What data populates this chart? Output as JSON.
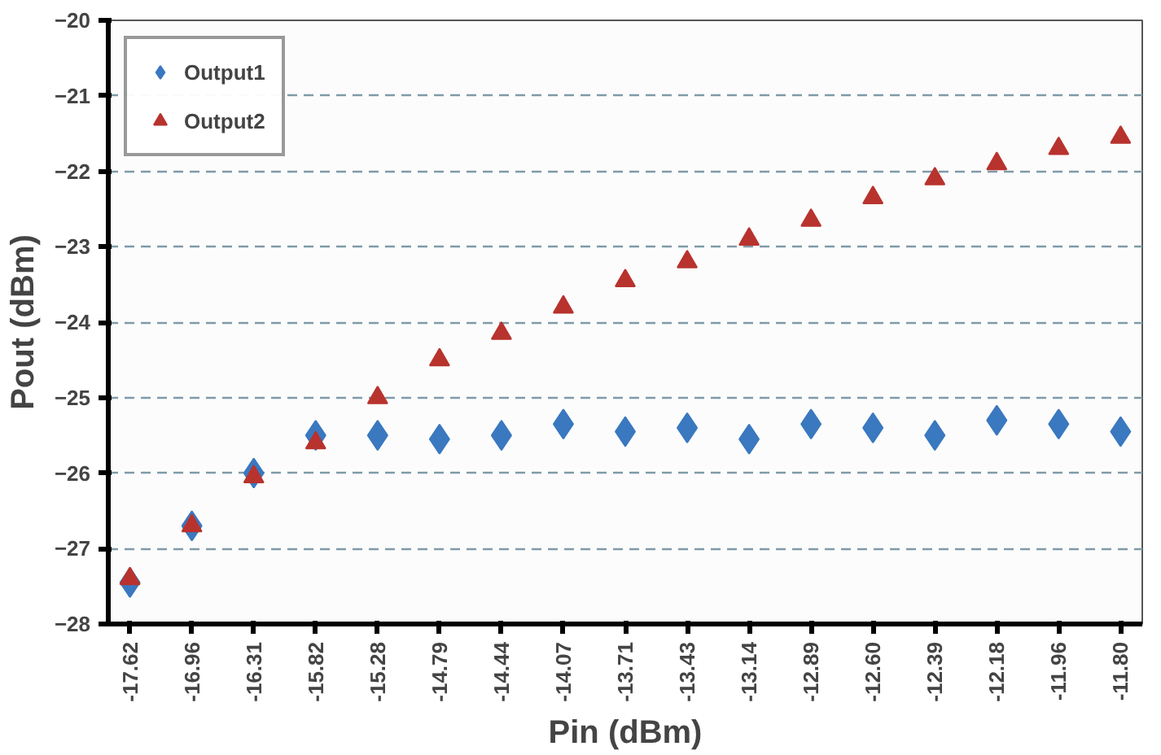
{
  "chart_data": {
    "type": "scatter",
    "xlabel": "Pin (dBm)",
    "ylabel": "Pout (dBm)",
    "categories": [
      "-17.62",
      "-16.96",
      "-16.31",
      "-15.82",
      "-15.28",
      "-14.79",
      "-14.44",
      "-14.07",
      "-13.71",
      "-13.43",
      "-13.14",
      "-12.89",
      "-12.60",
      "-12.39",
      "-12.18",
      "-11.96",
      "-11.80"
    ],
    "series": [
      {
        "name": "Output1",
        "color": "#3a78c0",
        "marker": "diamond",
        "values": [
          -27.45,
          -26.7,
          -26.0,
          -25.5,
          -25.5,
          -25.55,
          -25.5,
          -25.35,
          -25.45,
          -25.4,
          -25.55,
          -25.35,
          -25.4,
          -25.5,
          -25.3,
          -25.35,
          -25.45
        ]
      },
      {
        "name": "Output2",
        "color": "#b8332e",
        "marker": "triangle",
        "values": [
          -27.4,
          -26.7,
          -26.05,
          -25.6,
          -25.0,
          -24.5,
          -24.15,
          -23.8,
          -23.45,
          -23.2,
          -22.9,
          -22.65,
          -22.35,
          -22.1,
          -21.9,
          -21.7,
          -21.55
        ]
      }
    ],
    "ylim": [
      -28,
      -20
    ],
    "yticks": [
      -28,
      -27,
      -26,
      -25,
      -24,
      -23,
      -22,
      -21,
      -20
    ],
    "grid": "y",
    "legend": "top left"
  }
}
